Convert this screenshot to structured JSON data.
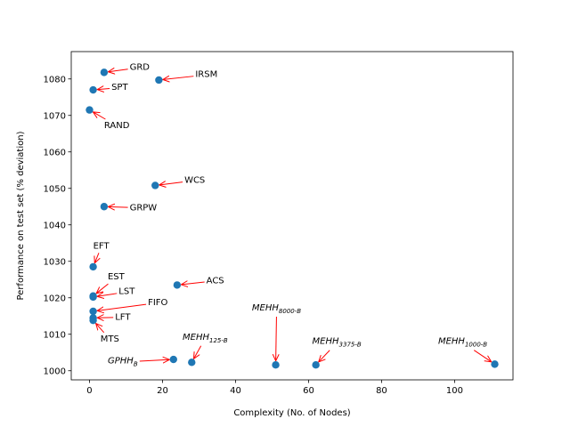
{
  "chart_data": {
    "type": "scatter",
    "title": "",
    "xlabel": "Complexity (No. of Nodes)",
    "ylabel": "Performance on test set (% deviation)",
    "xlim": [
      -5,
      116
    ],
    "ylim": [
      997.5,
      1087.5
    ],
    "xticks": [
      0,
      20,
      40,
      60,
      80,
      100
    ],
    "yticks": [
      1000,
      1010,
      1020,
      1030,
      1040,
      1050,
      1060,
      1070,
      1080
    ],
    "point_color": "#1f77b4",
    "arrow_color": "#ff0000",
    "points": [
      {
        "name": "GRD",
        "x": 4,
        "y": 1081.8,
        "lx": 11,
        "ly": 1083.5
      },
      {
        "name": "IRSM",
        "x": 19,
        "y": 1079.7,
        "lx": 29,
        "ly": 1081.5
      },
      {
        "name": "SPT",
        "x": 1,
        "y": 1077,
        "lx": 6,
        "ly": 1078
      },
      {
        "name": "RAND",
        "x": 0,
        "y": 1071.5,
        "lx": 4,
        "ly": 1067.5
      },
      {
        "name": "WCS",
        "x": 18,
        "y": 1050.8,
        "lx": 26,
        "ly": 1052.5
      },
      {
        "name": "GRPW",
        "x": 4,
        "y": 1045,
        "lx": 11,
        "ly": 1045
      },
      {
        "name": "EFT",
        "x": 1,
        "y": 1028.5,
        "lx": 1,
        "ly": 1034.5
      },
      {
        "name": "ACS",
        "x": 24,
        "y": 1023.5,
        "lx": 32,
        "ly": 1025
      },
      {
        "name": "EST",
        "x": 1,
        "y": 1020.5,
        "lx": 5,
        "ly": 1026
      },
      {
        "name": "LST",
        "x": 1,
        "y": 1020.2,
        "lx": 8,
        "ly": 1022
      },
      {
        "name": "FIFO",
        "x": 1,
        "y": 1016.3,
        "lx": 16,
        "ly": 1019
      },
      {
        "name": "LFT",
        "x": 1,
        "y": 1014.5,
        "lx": 7,
        "ly": 1015
      },
      {
        "name": "MTS",
        "x": 1,
        "y": 1013.8,
        "lx": 3,
        "ly": 1009
      },
      {
        "name": "GPHH",
        "sub": "B",
        "italic": true,
        "x": 23,
        "y": 1003.1,
        "lx": 5,
        "ly": 1003
      },
      {
        "name": "MEHH",
        "sub": "125-B",
        "italic": true,
        "x": 28,
        "y": 1002.3,
        "lx": 25.5,
        "ly": 1009.5
      },
      {
        "name": "MEHH",
        "sub": "8000-B",
        "italic": true,
        "x": 51,
        "y": 1001.6,
        "lx": 44.5,
        "ly": 1017.5
      },
      {
        "name": "MEHH",
        "sub": "3375-B",
        "italic": true,
        "x": 62,
        "y": 1001.6,
        "lx": 61,
        "ly": 1008.3
      },
      {
        "name": "MEHH",
        "sub": "1000-B",
        "italic": true,
        "x": 111,
        "y": 1001.8,
        "lx": 95.5,
        "ly": 1008.3
      }
    ]
  }
}
